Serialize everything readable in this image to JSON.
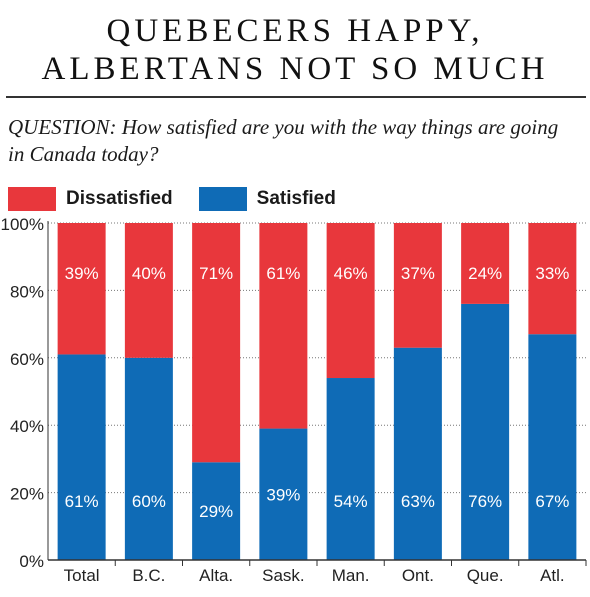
{
  "header": {
    "title_line1": "QUEBECERS HAPPY,",
    "title_line2": "ALBERTANS NOT SO MUCH",
    "question": "QUESTION: How satisfied are you with the way things are going in Canada today?"
  },
  "colors": {
    "dissatisfied": "#e8373c",
    "satisfied": "#0f6bb6"
  },
  "chart_data": {
    "type": "bar",
    "stacked": true,
    "categories": [
      "Total",
      "B.C.",
      "Alta.",
      "Sask.",
      "Man.",
      "Ont.",
      "Que.",
      "Atl."
    ],
    "series": [
      {
        "name": "Satisfied",
        "values": [
          61,
          60,
          29,
          39,
          54,
          63,
          76,
          67
        ]
      },
      {
        "name": "Dissatisfied",
        "values": [
          39,
          40,
          71,
          61,
          46,
          37,
          24,
          33
        ]
      }
    ],
    "data_labels": {
      "satisfied": [
        "61%",
        "60%",
        "29%",
        "39%",
        "54%",
        "63%",
        "76%",
        "67%"
      ],
      "dissatisfied": [
        "39%",
        "40%",
        "71%",
        "61%",
        "46%",
        "37%",
        "24%",
        "33%"
      ]
    },
    "yticks": [
      0,
      20,
      40,
      60,
      80,
      100
    ],
    "ytick_labels": [
      "0%",
      "20%",
      "40%",
      "60%",
      "80%",
      "100%"
    ],
    "ylim": [
      0,
      100
    ],
    "legend": {
      "position": "top-left",
      "labels": [
        "Dissatisfied",
        "Satisfied"
      ]
    },
    "grid": "dotted horizontal"
  }
}
